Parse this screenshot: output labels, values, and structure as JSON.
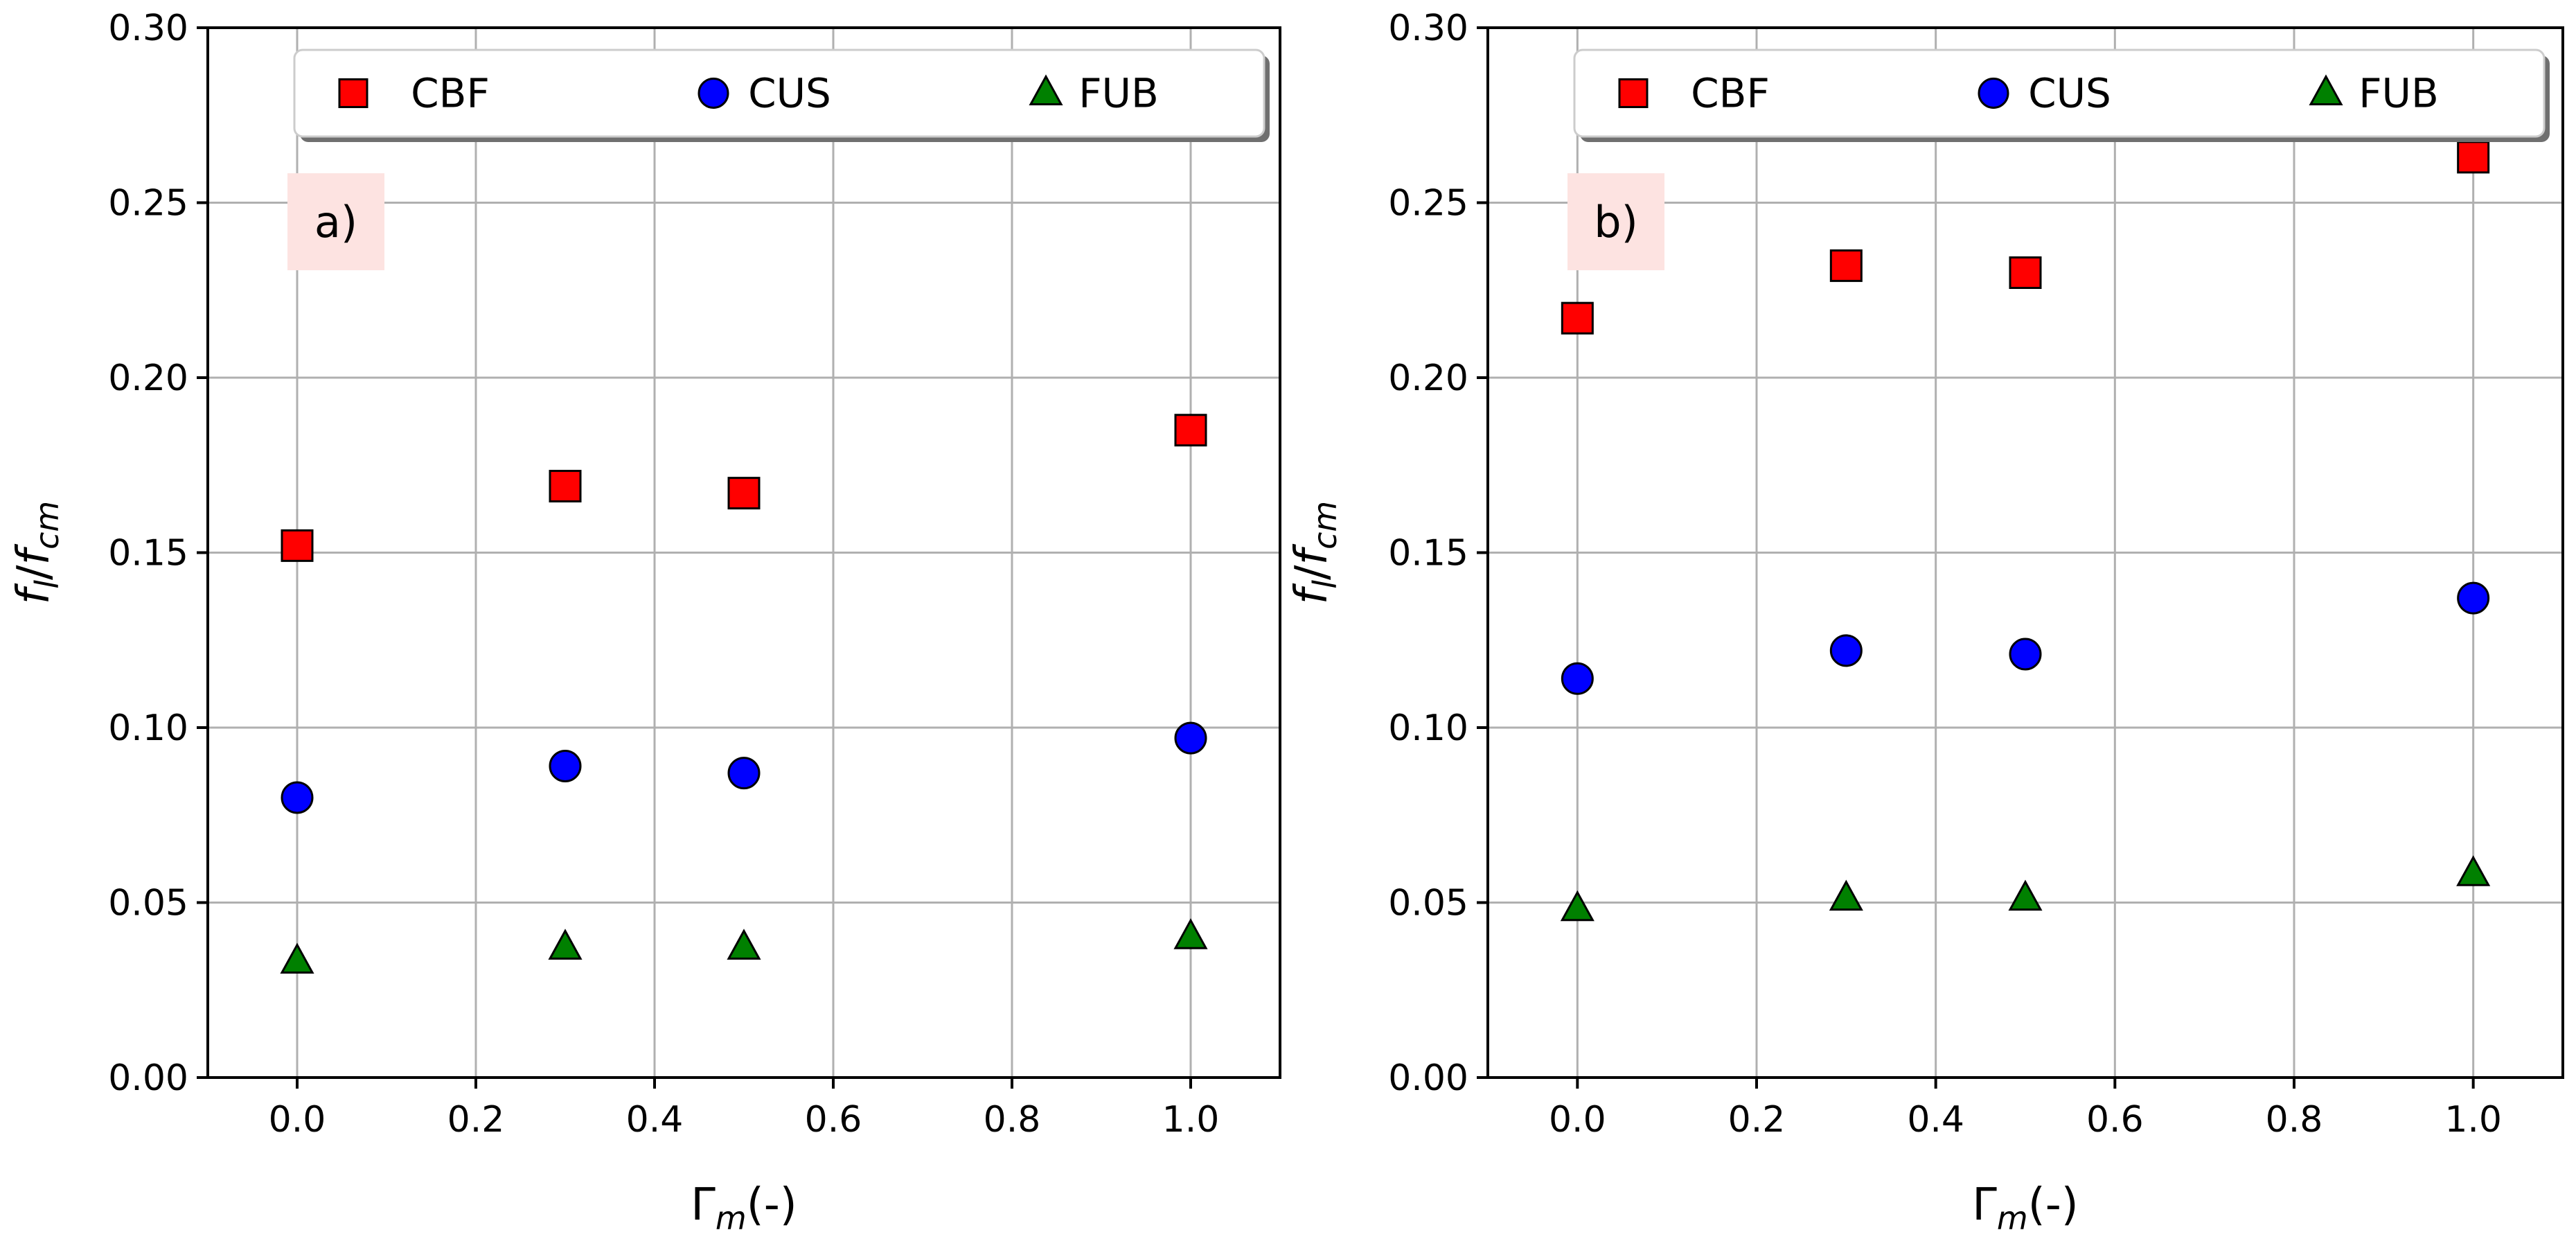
{
  "chart_data": [
    {
      "type": "scatter",
      "panel_label": "a)",
      "xlabel": "Γm(-)",
      "ylabel": "fl/fcm",
      "xlim": [
        -0.1,
        1.1
      ],
      "ylim": [
        0.0,
        0.3
      ],
      "xticks": [
        "0.0",
        "0.2",
        "0.4",
        "0.6",
        "0.8",
        "1.0"
      ],
      "yticks": [
        "0.00",
        "0.05",
        "0.10",
        "0.15",
        "0.20",
        "0.25",
        "0.30"
      ],
      "grid": true,
      "legend": "top, horizontal",
      "x": [
        0.0,
        0.3,
        0.5,
        1.0
      ],
      "series": [
        {
          "name": "CBF",
          "marker": "square",
          "color": "#ff0000",
          "values": [
            0.152,
            0.169,
            0.167,
            0.185
          ]
        },
        {
          "name": "CUS",
          "marker": "circle",
          "color": "#0000ff",
          "values": [
            0.08,
            0.089,
            0.087,
            0.097
          ]
        },
        {
          "name": "FUB",
          "marker": "triangle",
          "color": "#008000",
          "values": [
            0.033,
            0.037,
            0.037,
            0.04
          ]
        }
      ]
    },
    {
      "type": "scatter",
      "panel_label": "b)",
      "xlabel": "Γm(-)",
      "ylabel": "fl/fcm",
      "xlim": [
        -0.1,
        1.1
      ],
      "ylim": [
        0.0,
        0.3
      ],
      "xticks": [
        "0.0",
        "0.2",
        "0.4",
        "0.6",
        "0.8",
        "1.0"
      ],
      "yticks": [
        "0.00",
        "0.05",
        "0.10",
        "0.15",
        "0.20",
        "0.25",
        "0.30"
      ],
      "grid": true,
      "legend": "top, horizontal",
      "x": [
        0.0,
        0.3,
        0.5,
        1.0
      ],
      "series": [
        {
          "name": "CBF",
          "marker": "square",
          "color": "#ff0000",
          "values": [
            0.217,
            0.232,
            0.23,
            0.263
          ]
        },
        {
          "name": "CUS",
          "marker": "circle",
          "color": "#0000ff",
          "values": [
            0.114,
            0.122,
            0.121,
            0.137
          ]
        },
        {
          "name": "FUB",
          "marker": "triangle",
          "color": "#008000",
          "values": [
            0.048,
            0.051,
            0.051,
            0.058
          ]
        }
      ]
    }
  ],
  "style": {
    "grid_color": "#b0b0b0",
    "panel_label_bg": "#fde3e1",
    "marker_edge": "#000000"
  }
}
